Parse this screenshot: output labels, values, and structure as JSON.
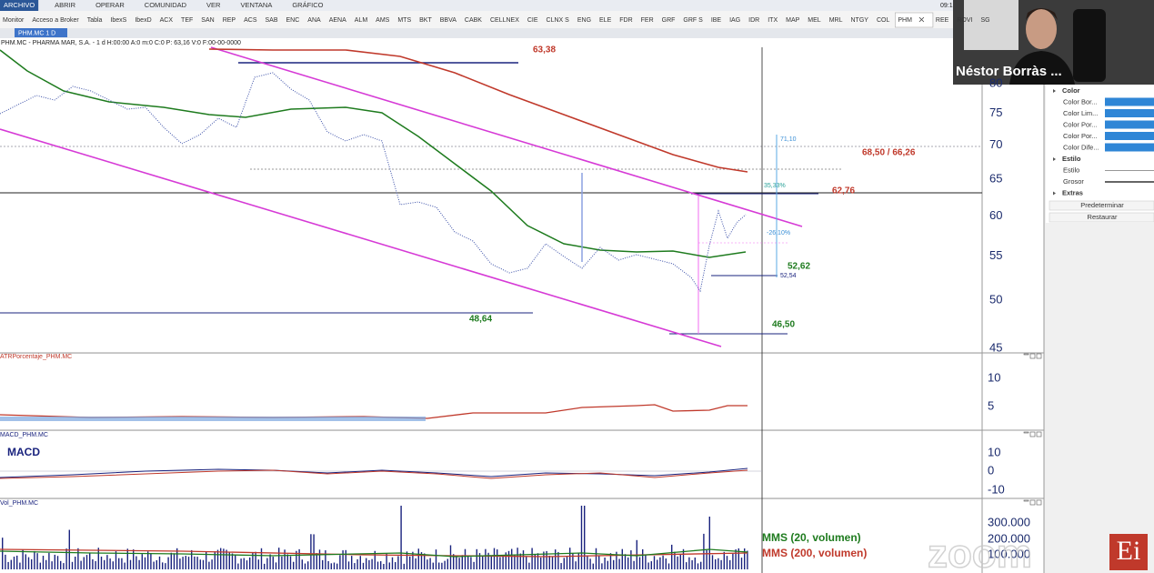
{
  "menu": [
    "ARCHIVO",
    "ABRIR",
    "OPERAR",
    "COMUNIDAD",
    "VER",
    "VENTANA",
    "GRÁFICO"
  ],
  "clock": "09:1",
  "tabs": [
    "Monitor",
    "Acceso a Broker",
    "Tabla",
    "IbexS",
    "IbexD",
    "ACX",
    "TEF",
    "SAN",
    "REP",
    "ACS",
    "SAB",
    "ENC",
    "ANA",
    "AENA",
    "ALM",
    "AMS",
    "MTS",
    "BKT",
    "BBVA",
    "CABK",
    "CELLNEX",
    "CIE",
    "CLNX S",
    "ENG",
    "ELE",
    "FDR",
    "FER",
    "GRF",
    "GRF S",
    "IBE",
    "IAG",
    "IDR",
    "ITX",
    "MAP",
    "MEL",
    "MRL",
    "NTGY",
    "COL",
    "PHM",
    "REE",
    "ROVI",
    "SG"
  ],
  "selected_tab": "PHM",
  "chart_tab": "PHM.MC 1 D",
  "chart_header": "PHM.MC - PHARMA MAR, S.A. - 1 d H:00:00 A:0 m:0 C:0 P: 63,16 V:0 F:00-00-0000",
  "price_panel": {
    "axis_labels": [
      "80",
      "75",
      "70",
      "65",
      "60",
      "55",
      "50",
      "45"
    ],
    "annotations": [
      "63,38",
      "68,50 / 66,26",
      "62,76",
      "71,10",
      "35,33%",
      "-26,10%",
      "52,54",
      "52,62",
      "48,64",
      "46,50"
    ]
  },
  "atr_panel": {
    "title": "ATRPorcentaje_PHM.MC",
    "axis_labels": [
      "10",
      "5"
    ]
  },
  "macd_panel": {
    "title": "MACD_PHM.MC",
    "label": "MACD",
    "axis_labels": [
      "10",
      "0",
      "-10"
    ]
  },
  "volume_panel": {
    "title": "Vol_PHM.MC",
    "axis_labels": [
      "300.000",
      "200.000",
      "100.000"
    ],
    "legend": [
      "MMS (20, volumen)",
      "MMS (200, volumen)"
    ]
  },
  "properties": {
    "groups": [
      {
        "title": "Color",
        "items": [
          "Color Bor...",
          "Color Lim...",
          "Color Por...",
          "Color Por...",
          "Color Dife..."
        ]
      },
      {
        "title": "Estilo",
        "items": [
          "Estilo",
          "Grosor"
        ]
      },
      {
        "title": "Extras",
        "items": []
      }
    ],
    "buttons": [
      "Predeterminar",
      "Restaurar"
    ]
  },
  "webcam": {
    "name": "Néstor Borràs ..."
  },
  "watermark": "zoom",
  "logo": "Ei"
}
